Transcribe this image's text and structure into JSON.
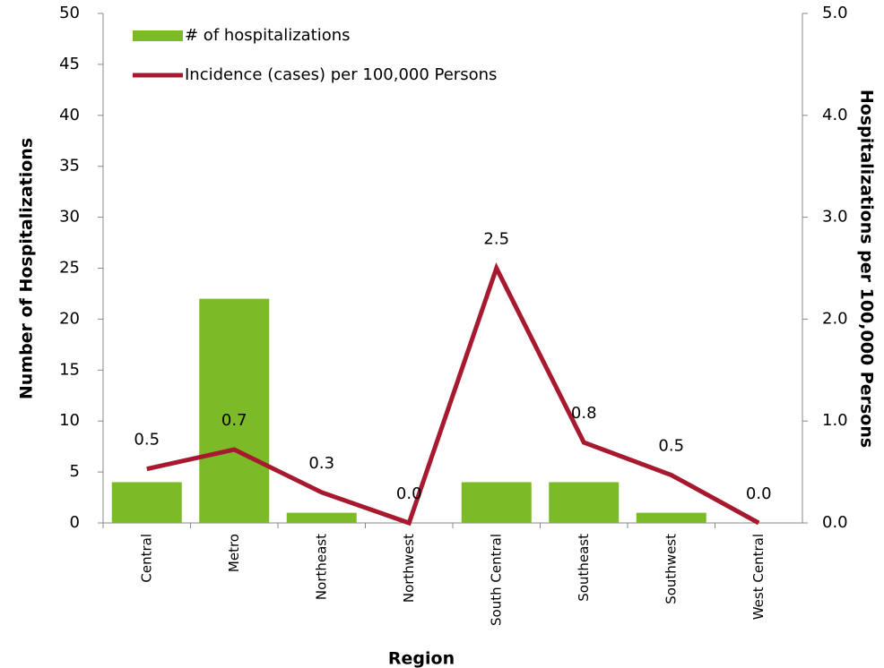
{
  "chart_data": {
    "type": "bar_line",
    "categories": [
      "Central",
      "Metro",
      "Northeast",
      "Northwest",
      "South Central",
      "Southeast",
      "Southwest",
      "West Central"
    ],
    "series": [
      {
        "name": "# of hospitalizations",
        "type": "bar",
        "color": "#7cba27",
        "values": [
          4,
          22,
          1,
          0,
          4,
          4,
          1,
          0
        ]
      },
      {
        "name": "Incidence (cases) per 100,000 Persons",
        "type": "line",
        "axis": "y2",
        "color": "#a6192e",
        "values": [
          0.53,
          0.72,
          0.3,
          0,
          2.5,
          0.79,
          0.47,
          0
        ],
        "value_labels": [
          "0.5",
          "0.7",
          "0.3",
          "0.0",
          "2.5",
          "0.8",
          "0.5",
          "0.0"
        ]
      }
    ],
    "ylabel": "Number of Hospitalizations",
    "y2label": "Hospitalizations per 100,000 Persons",
    "xlabel": "Region",
    "ylim": [
      0,
      50
    ],
    "yticks": [
      0,
      5,
      10,
      15,
      20,
      25,
      30,
      35,
      40,
      45,
      50
    ],
    "y2lim": [
      0,
      5
    ],
    "y2ticks": [
      {
        "value": 0,
        "label": "0.0"
      },
      {
        "value": 1,
        "label": "1.0"
      },
      {
        "value": 2,
        "label": "2.0"
      },
      {
        "value": 3,
        "label": "3.0"
      },
      {
        "value": 4,
        "label": "4.0"
      },
      {
        "value": 5,
        "label": "5.0"
      }
    ],
    "legend": "top-left",
    "grid": false
  }
}
